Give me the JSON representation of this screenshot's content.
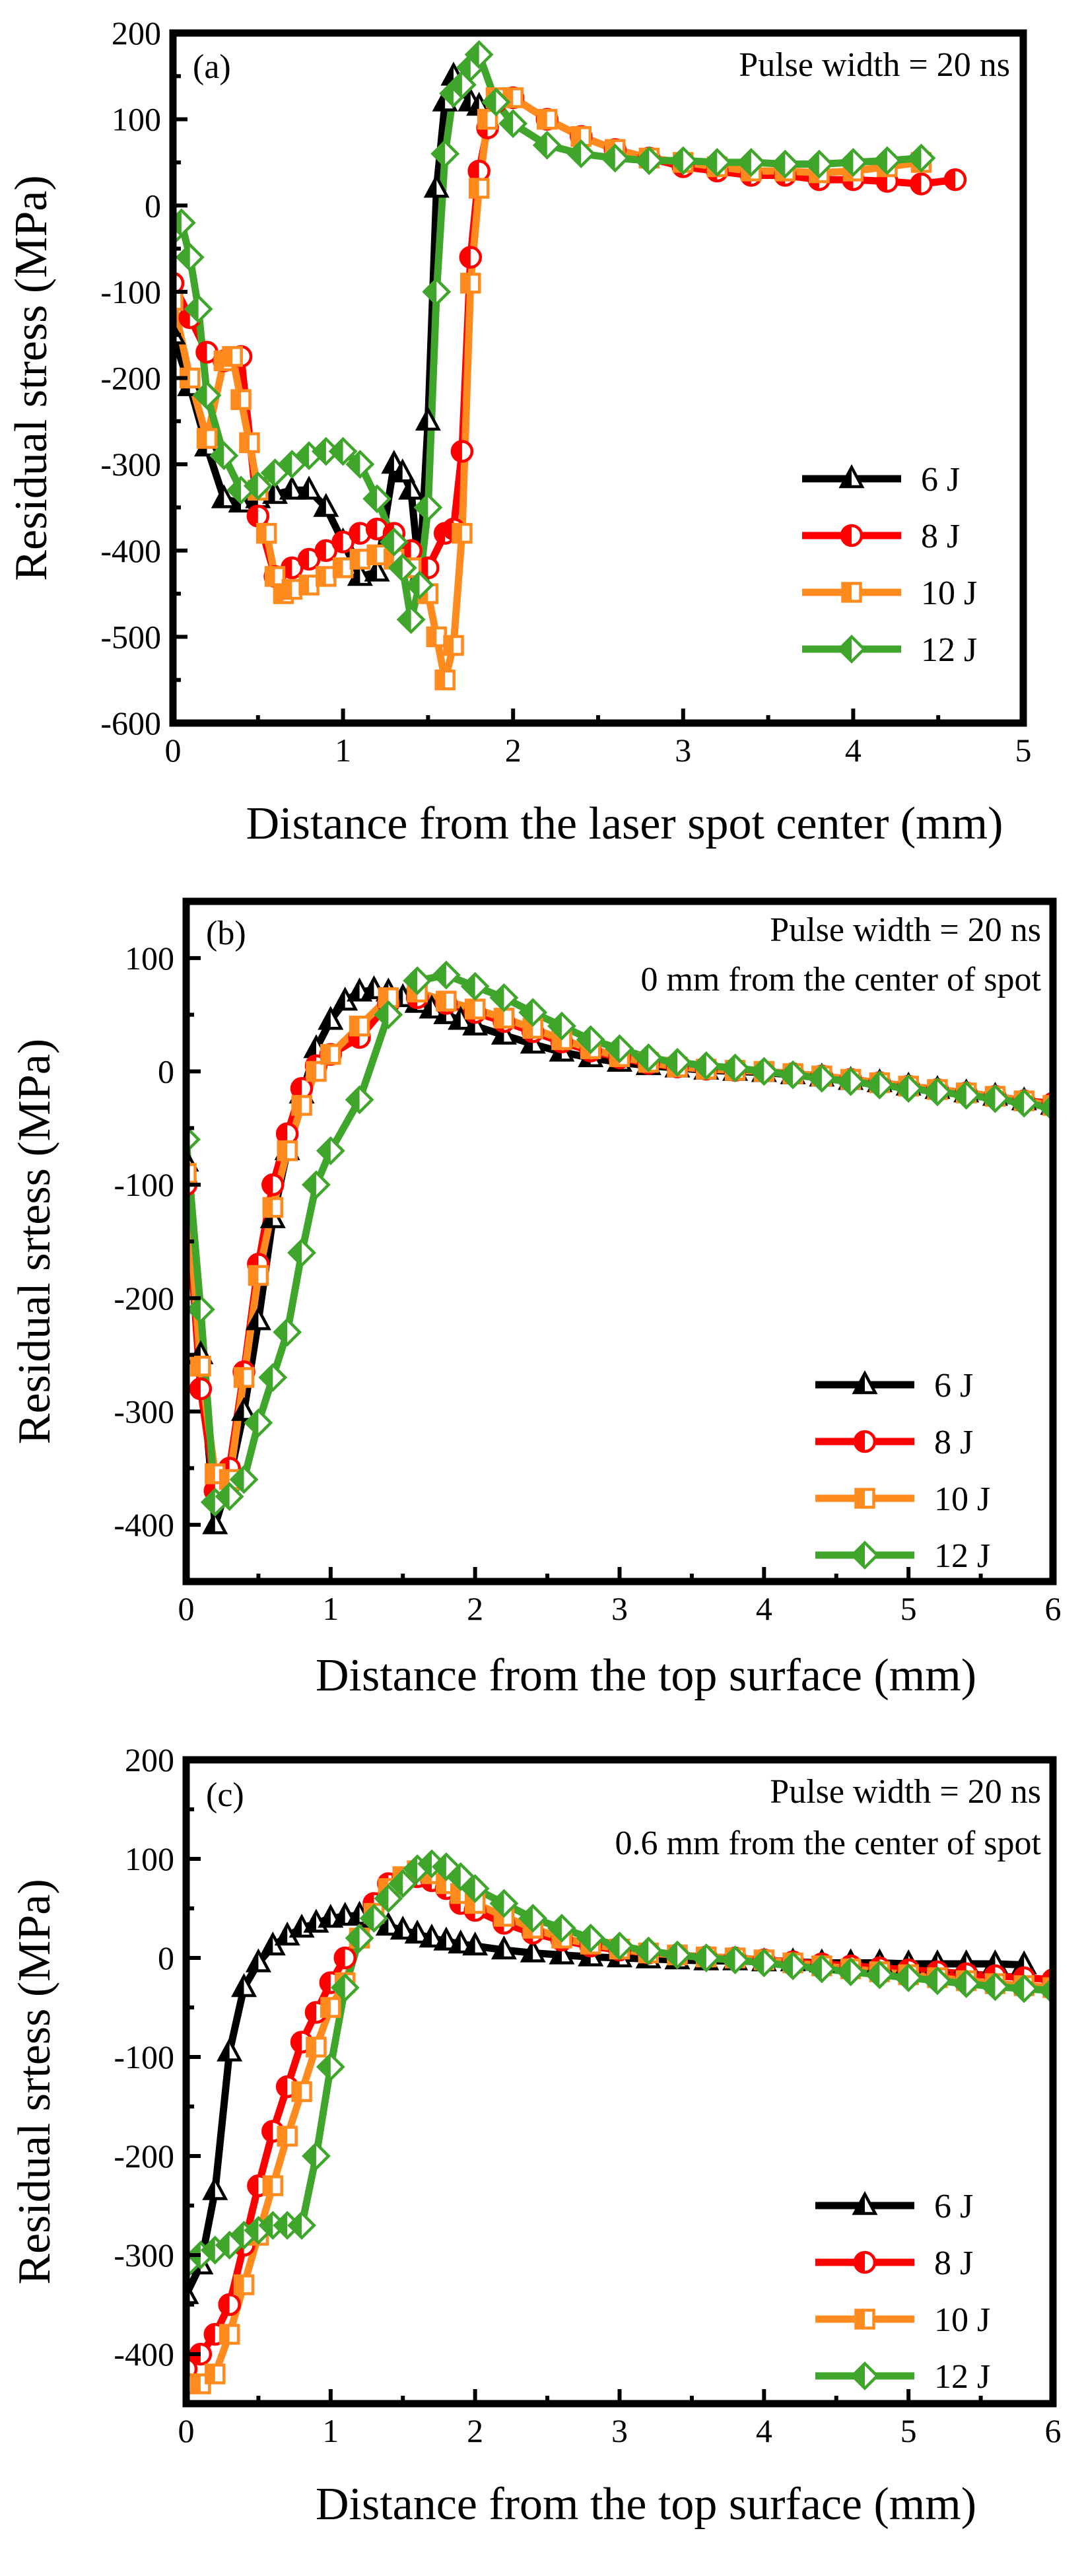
{
  "colors": {
    "6 J": "#000000",
    "8 J": "#ff0000",
    "10 J": "#ff8a1e",
    "12 J": "#3fa52b"
  },
  "chart_data": [
    {
      "type": "line",
      "panel_label": "(a)",
      "annotations": [
        "Pulse width = 20 ns"
      ],
      "xlabel": "Distance from the laser spot center (mm)",
      "ylabel": "Residual stress (MPa)",
      "xlim": [
        0,
        5
      ],
      "ylim": [
        -600,
        200
      ],
      "xticks": [
        0,
        1,
        2,
        3,
        4,
        5
      ],
      "yticks": [
        200,
        100,
        0,
        -100,
        -200,
        -300,
        -400,
        -500,
        -600
      ],
      "legend_position": "bottom-right",
      "series": [
        {
          "name": "6 J",
          "marker": "triangle",
          "x": [
            0,
            0.1,
            0.2,
            0.3,
            0.4,
            0.5,
            0.6,
            0.7,
            0.8,
            0.9,
            1.0,
            1.1,
            1.2,
            1.3,
            1.35,
            1.4,
            1.45,
            1.5,
            1.55,
            1.6,
            1.65,
            1.7,
            1.75,
            1.8
          ],
          "y": [
            -150,
            -210,
            -280,
            -340,
            -345,
            -340,
            -335,
            -330,
            -330,
            -350,
            -390,
            -430,
            -425,
            -300,
            -310,
            -330,
            -430,
            -250,
            20,
            120,
            150,
            135,
            120,
            115
          ]
        },
        {
          "name": "8 J",
          "marker": "half-circle",
          "x": [
            0,
            0.1,
            0.2,
            0.3,
            0.4,
            0.5,
            0.6,
            0.7,
            0.8,
            0.9,
            1.0,
            1.1,
            1.2,
            1.3,
            1.4,
            1.5,
            1.6,
            1.65,
            1.7,
            1.75,
            1.8,
            1.85,
            1.9,
            2.0,
            2.2,
            2.4,
            2.6,
            2.8,
            3.0,
            3.2,
            3.4,
            3.6,
            3.8,
            4.0,
            4.2,
            4.4,
            4.6
          ],
          "y": [
            -90,
            -130,
            -170,
            -180,
            -175,
            -360,
            -430,
            -420,
            -410,
            -400,
            -390,
            -380,
            -375,
            -380,
            -400,
            -420,
            -380,
            -375,
            -285,
            -60,
            40,
            90,
            120,
            125,
            100,
            80,
            65,
            55,
            45,
            40,
            35,
            35,
            30,
            30,
            28,
            25,
            30
          ]
        },
        {
          "name": "10 J",
          "marker": "square",
          "x": [
            0,
            0.1,
            0.2,
            0.3,
            0.35,
            0.4,
            0.45,
            0.5,
            0.55,
            0.6,
            0.65,
            0.7,
            0.8,
            0.9,
            1.0,
            1.1,
            1.2,
            1.3,
            1.4,
            1.5,
            1.55,
            1.6,
            1.65,
            1.7,
            1.75,
            1.8,
            1.85,
            1.9,
            2.0,
            2.2,
            2.4,
            2.6,
            2.8,
            3.0,
            3.2,
            3.4,
            3.6,
            3.8,
            4.0,
            4.2,
            4.4
          ],
          "y": [
            -110,
            -200,
            -270,
            -180,
            -175,
            -225,
            -275,
            -330,
            -380,
            -430,
            -450,
            -445,
            -440,
            -430,
            -420,
            -410,
            -405,
            -410,
            -420,
            -450,
            -500,
            -550,
            -510,
            -380,
            -90,
            20,
            100,
            125,
            125,
            100,
            80,
            65,
            55,
            50,
            45,
            40,
            40,
            38,
            40,
            45,
            50
          ]
        },
        {
          "name": "12 J",
          "marker": "diamond",
          "x": [
            0,
            0.05,
            0.1,
            0.15,
            0.2,
            0.3,
            0.4,
            0.5,
            0.6,
            0.7,
            0.8,
            0.9,
            1.0,
            1.1,
            1.2,
            1.3,
            1.35,
            1.4,
            1.45,
            1.5,
            1.55,
            1.6,
            1.65,
            1.7,
            1.75,
            1.8,
            1.9,
            2.0,
            2.2,
            2.4,
            2.6,
            2.8,
            3.0,
            3.2,
            3.4,
            3.6,
            3.8,
            4.0,
            4.2,
            4.4
          ],
          "y": [
            -30,
            -20,
            -60,
            -120,
            -220,
            -290,
            -330,
            -325,
            -310,
            -300,
            -290,
            -285,
            -285,
            -300,
            -340,
            -390,
            -420,
            -480,
            -440,
            -350,
            -100,
            60,
            130,
            140,
            160,
            175,
            120,
            95,
            70,
            60,
            55,
            52,
            52,
            50,
            50,
            48,
            48,
            50,
            52,
            55
          ]
        }
      ]
    },
    {
      "type": "line",
      "panel_label": "(b)",
      "annotations": [
        "Pulse width = 20 ns",
        "0 mm from the center of spot"
      ],
      "xlabel": "Distance from the top surface (mm)",
      "ylabel": "Residual srtess (MPa)",
      "xlim": [
        0,
        6
      ],
      "ylim": [
        -450,
        150
      ],
      "xticks": [
        0,
        1,
        2,
        3,
        4,
        5,
        6
      ],
      "yticks": [
        100,
        0,
        -100,
        -200,
        -300,
        -400
      ],
      "legend_position": "bottom-right",
      "series": [
        {
          "name": "6 J",
          "marker": "triangle",
          "x": [
            0,
            0.1,
            0.2,
            0.3,
            0.4,
            0.5,
            0.6,
            0.7,
            0.8,
            0.9,
            1.0,
            1.1,
            1.2,
            1.3,
            1.4,
            1.5,
            1.6,
            1.7,
            1.8,
            1.9,
            2.0,
            2.2,
            2.4,
            2.6,
            2.8,
            3.0,
            3.2,
            3.4,
            3.6,
            3.8,
            4.0,
            4.2,
            4.4,
            4.6,
            4.8,
            5.0,
            5.2,
            5.4,
            5.6,
            5.8,
            6.0
          ],
          "y": [
            -80,
            -250,
            -400,
            -360,
            -300,
            -220,
            -130,
            -70,
            -20,
            20,
            45,
            62,
            70,
            72,
            70,
            65,
            60,
            55,
            50,
            45,
            40,
            32,
            24,
            17,
            12,
            8,
            5,
            3,
            1,
            0,
            -1,
            -3,
            -5,
            -8,
            -10,
            -13,
            -16,
            -19,
            -22,
            -26,
            -30
          ]
        },
        {
          "name": "8 J",
          "marker": "half-circle",
          "x": [
            0,
            0.1,
            0.2,
            0.3,
            0.4,
            0.5,
            0.6,
            0.7,
            0.8,
            0.9,
            1.0,
            1.2,
            1.4,
            1.6,
            1.8,
            2.0,
            2.2,
            2.4,
            2.6,
            2.8,
            3.0,
            3.2,
            3.4,
            3.6,
            3.8,
            4.0,
            4.2,
            4.4,
            4.6,
            4.8,
            5.0,
            5.2,
            5.4,
            5.6,
            5.8,
            6.0
          ],
          "y": [
            -100,
            -280,
            -370,
            -350,
            -265,
            -170,
            -100,
            -55,
            -15,
            5,
            15,
            30,
            60,
            65,
            60,
            52,
            44,
            35,
            26,
            18,
            12,
            7,
            4,
            2,
            1,
            0,
            -2,
            -4,
            -7,
            -10,
            -13,
            -16,
            -19,
            -22,
            -26,
            -28
          ]
        },
        {
          "name": "10 J",
          "marker": "square",
          "x": [
            0,
            0.1,
            0.2,
            0.3,
            0.4,
            0.5,
            0.6,
            0.7,
            0.8,
            0.9,
            1.0,
            1.2,
            1.4,
            1.6,
            1.8,
            2.0,
            2.2,
            2.4,
            2.6,
            2.8,
            3.0,
            3.2,
            3.4,
            3.6,
            3.8,
            4.0,
            4.2,
            4.4,
            4.6,
            4.8,
            5.0,
            5.2,
            5.4,
            5.6,
            5.8,
            6.0
          ],
          "y": [
            -90,
            -260,
            -355,
            -360,
            -270,
            -180,
            -120,
            -70,
            -30,
            0,
            15,
            40,
            65,
            70,
            62,
            55,
            47,
            38,
            28,
            20,
            13,
            8,
            4,
            2,
            1,
            0,
            -2,
            -4,
            -7,
            -10,
            -13,
            -16,
            -19,
            -22,
            -26,
            -30
          ]
        },
        {
          "name": "12 J",
          "marker": "diamond",
          "x": [
            0,
            0.1,
            0.2,
            0.3,
            0.4,
            0.5,
            0.6,
            0.7,
            0.8,
            0.9,
            1.0,
            1.2,
            1.4,
            1.6,
            1.8,
            2.0,
            2.2,
            2.4,
            2.6,
            2.8,
            3.0,
            3.2,
            3.4,
            3.6,
            3.8,
            4.0,
            4.2,
            4.4,
            4.6,
            4.8,
            5.0,
            5.2,
            5.4,
            5.6,
            5.8,
            6.0
          ],
          "y": [
            -60,
            -210,
            -380,
            -375,
            -360,
            -310,
            -270,
            -230,
            -160,
            -100,
            -70,
            -25,
            50,
            80,
            85,
            75,
            65,
            52,
            40,
            28,
            20,
            12,
            8,
            5,
            3,
            0,
            -3,
            -6,
            -9,
            -12,
            -15,
            -18,
            -21,
            -24,
            -28,
            -32
          ]
        }
      ]
    },
    {
      "type": "line",
      "panel_label": "(c)",
      "annotations": [
        "Pulse width = 20 ns",
        "0.6 mm from the center of spot"
      ],
      "xlabel": "Distance from the top surface (mm)",
      "ylabel": "Residual srtess (MPa)",
      "xlim": [
        0,
        6
      ],
      "ylim": [
        -450,
        200
      ],
      "xticks": [
        0,
        1,
        2,
        3,
        4,
        5,
        6
      ],
      "yticks": [
        200,
        100,
        0,
        -100,
        -200,
        -300,
        -400
      ],
      "legend_position": "bottom-right",
      "series": [
        {
          "name": "6 J",
          "marker": "triangle",
          "x": [
            0,
            0.1,
            0.2,
            0.3,
            0.4,
            0.5,
            0.6,
            0.7,
            0.8,
            0.9,
            1.0,
            1.1,
            1.2,
            1.3,
            1.4,
            1.5,
            1.6,
            1.7,
            1.8,
            1.9,
            2.0,
            2.2,
            2.4,
            2.6,
            2.8,
            3.0,
            3.2,
            3.4,
            3.6,
            3.8,
            4.0,
            4.2,
            4.4,
            4.6,
            4.8,
            5.0,
            5.2,
            5.4,
            5.6,
            5.8
          ],
          "y": [
            -340,
            -310,
            -235,
            -95,
            -30,
            -5,
            12,
            22,
            30,
            35,
            40,
            42,
            43,
            40,
            32,
            28,
            24,
            20,
            17,
            14,
            12,
            8,
            5,
            3,
            1,
            0,
            -1,
            -2,
            -3,
            -3,
            -4,
            -4,
            -5,
            -5,
            -5,
            -6,
            -6,
            -6,
            -6,
            -7
          ]
        },
        {
          "name": "8 J",
          "marker": "half-circle",
          "x": [
            0,
            0.1,
            0.2,
            0.3,
            0.4,
            0.5,
            0.6,
            0.7,
            0.8,
            0.9,
            1.0,
            1.1,
            1.2,
            1.3,
            1.4,
            1.5,
            1.6,
            1.7,
            1.8,
            1.9,
            2.0,
            2.2,
            2.4,
            2.6,
            2.8,
            3.0,
            3.2,
            3.4,
            3.6,
            3.8,
            4.0,
            4.2,
            4.4,
            4.6,
            4.8,
            5.0,
            5.2,
            5.4,
            5.6,
            5.8,
            6.0
          ],
          "y": [
            -415,
            -400,
            -380,
            -350,
            -290,
            -230,
            -175,
            -130,
            -85,
            -55,
            -25,
            0,
            20,
            55,
            75,
            80,
            82,
            78,
            70,
            55,
            48,
            35,
            25,
            18,
            12,
            8,
            5,
            3,
            1,
            0,
            -2,
            -4,
            -6,
            -8,
            -10,
            -12,
            -14,
            -16,
            -18,
            -20,
            -22
          ]
        },
        {
          "name": "10 J",
          "marker": "square",
          "x": [
            0,
            0.1,
            0.2,
            0.3,
            0.4,
            0.5,
            0.6,
            0.7,
            0.8,
            0.9,
            1.0,
            1.1,
            1.2,
            1.3,
            1.4,
            1.5,
            1.6,
            1.7,
            1.8,
            1.9,
            2.0,
            2.2,
            2.4,
            2.6,
            2.8,
            3.0,
            3.2,
            3.4,
            3.6,
            3.8,
            4.0,
            4.2,
            4.4,
            4.6,
            4.8,
            5.0,
            5.2,
            5.4,
            5.6,
            5.8,
            6.0
          ],
          "y": [
            -430,
            -430,
            -420,
            -380,
            -330,
            -280,
            -230,
            -180,
            -135,
            -90,
            -50,
            -25,
            20,
            45,
            70,
            82,
            88,
            85,
            75,
            65,
            55,
            42,
            30,
            20,
            14,
            9,
            5,
            3,
            1,
            0,
            -2,
            -5,
            -8,
            -11,
            -14,
            -17,
            -20,
            -23,
            -26,
            -28,
            -30
          ]
        },
        {
          "name": "12 J",
          "marker": "diamond",
          "x": [
            0,
            0.1,
            0.2,
            0.3,
            0.4,
            0.5,
            0.6,
            0.7,
            0.8,
            0.9,
            1.0,
            1.1,
            1.2,
            1.3,
            1.4,
            1.5,
            1.6,
            1.7,
            1.8,
            1.9,
            2.0,
            2.2,
            2.4,
            2.6,
            2.8,
            3.0,
            3.2,
            3.4,
            3.6,
            3.8,
            4.0,
            4.2,
            4.4,
            4.6,
            4.8,
            5.0,
            5.2,
            5.4,
            5.6,
            5.8,
            6.0
          ],
          "y": [
            -310,
            -300,
            -295,
            -290,
            -280,
            -275,
            -270,
            -270,
            -270,
            -200,
            -110,
            -30,
            20,
            40,
            60,
            75,
            90,
            95,
            92,
            82,
            70,
            55,
            40,
            30,
            20,
            12,
            7,
            3,
            0,
            -2,
            -5,
            -8,
            -11,
            -14,
            -17,
            -20,
            -23,
            -26,
            -29,
            -31,
            -33
          ]
        }
      ]
    }
  ]
}
